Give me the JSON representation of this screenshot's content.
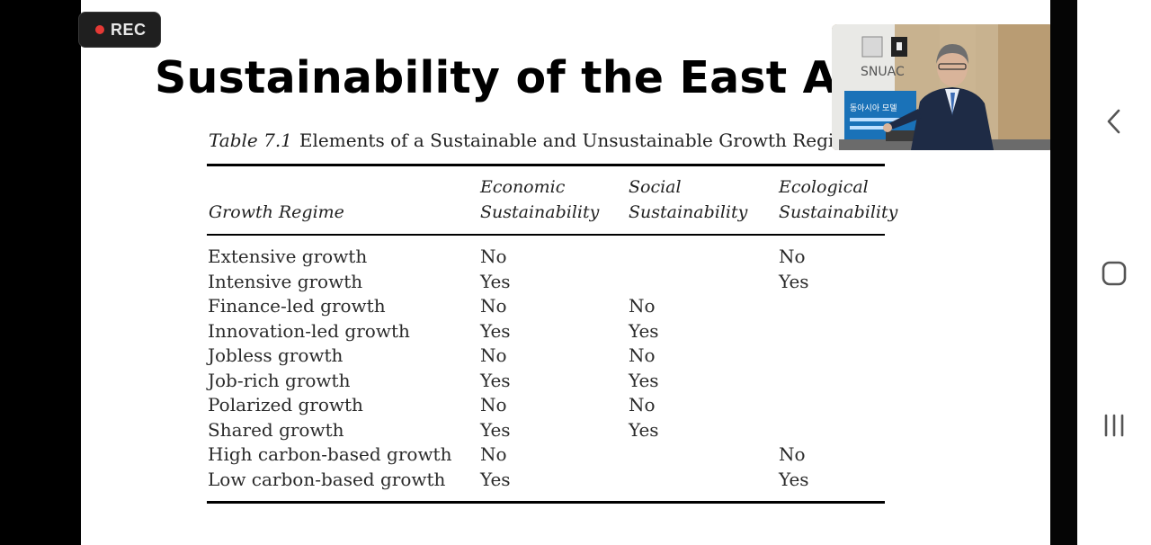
{
  "recording": {
    "label": "REC"
  },
  "slide": {
    "title": "Sustainability of the East Asian",
    "caption_label": "Table 7.1",
    "caption_text": "Elements of a Sustainable and Unsustainable Growth Regime",
    "headers": [
      [
        "",
        "Growth Regime"
      ],
      [
        "Economic",
        "Sustainability"
      ],
      [
        "Social",
        "Sustainability"
      ],
      [
        "Ecological",
        "Sustainability"
      ]
    ],
    "rows": [
      [
        "Extensive growth",
        "No",
        "",
        "No"
      ],
      [
        "Intensive growth",
        "Yes",
        "",
        "Yes"
      ],
      [
        "Finance-led growth",
        "No",
        "No",
        ""
      ],
      [
        "Innovation-led growth",
        "Yes",
        "Yes",
        ""
      ],
      [
        "Jobless growth",
        "No",
        "No",
        ""
      ],
      [
        "Job-rich growth",
        "Yes",
        "Yes",
        ""
      ],
      [
        "Polarized growth",
        "No",
        "No",
        ""
      ],
      [
        "Shared growth",
        "Yes",
        "Yes",
        ""
      ],
      [
        "High carbon-based growth",
        "No",
        "",
        "No"
      ],
      [
        "Low carbon-based growth",
        "Yes",
        "",
        "Yes"
      ]
    ]
  },
  "webcam": {
    "logo_text": "SNUAC",
    "banner_text": "동아시아 모델"
  },
  "nav": {
    "back_icon": "chevron-left-icon",
    "home_icon": "rounded-square-icon",
    "recents_icon": "three-bars-icon"
  },
  "colors": {
    "rec_dot": "#e53935",
    "status_dot": "#2ecc40",
    "slide_bg": "#ffffff"
  }
}
